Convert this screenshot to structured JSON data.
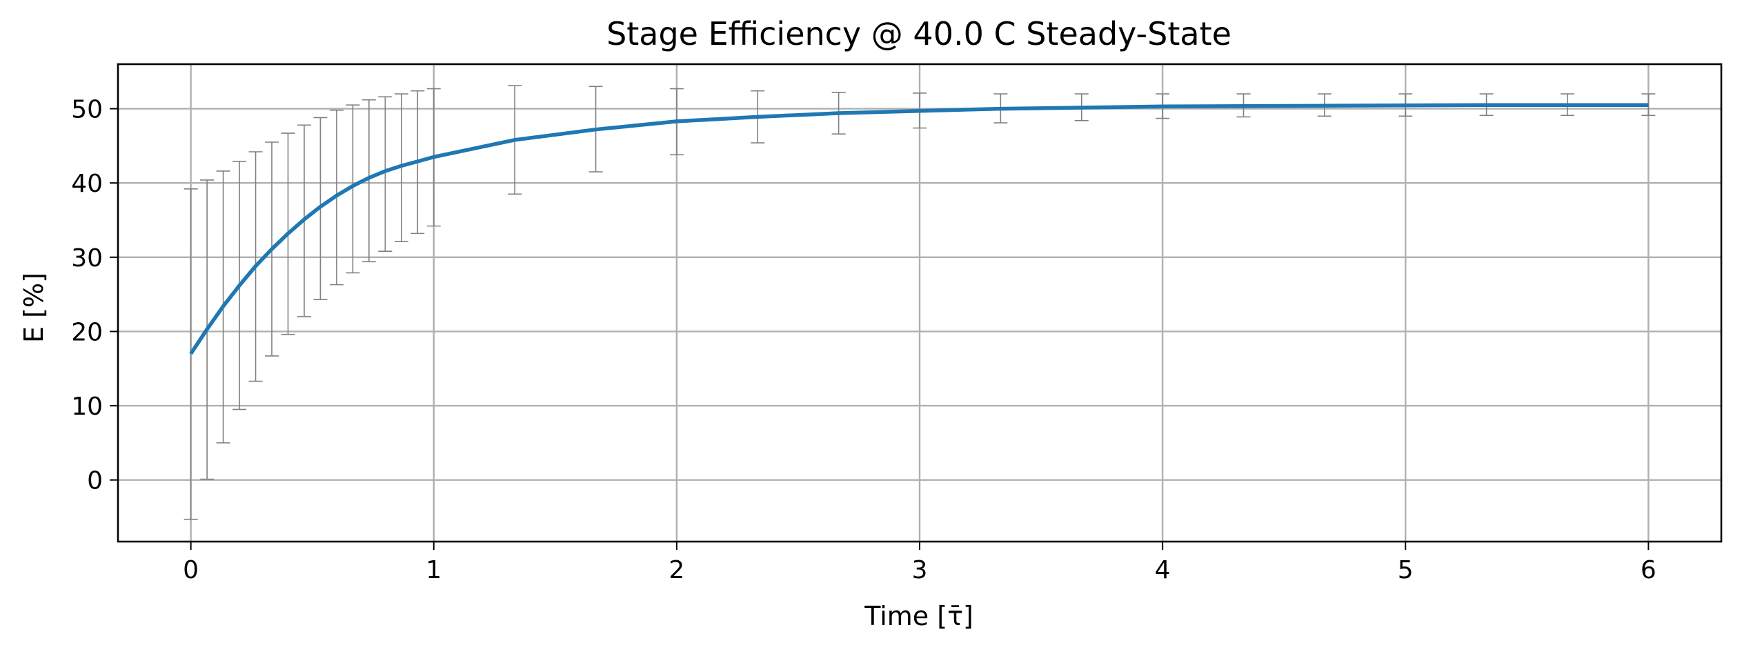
{
  "chart_data": {
    "type": "line",
    "title": "Stage Efficiency @ 40.0 C Steady-State",
    "xlabel": "Time [τ̄]",
    "ylabel": "E [%]",
    "xlim": [
      -0.3,
      6.3
    ],
    "ylim": [
      -8.3,
      56.0
    ],
    "xticks": [
      "0",
      "1",
      "2",
      "3",
      "4",
      "5",
      "6"
    ],
    "yticks": [
      "0",
      "10",
      "20",
      "30",
      "40",
      "50"
    ],
    "grid": true,
    "legend": "none",
    "colors": {
      "line": "#1f77b4",
      "errorbar": "#808080",
      "grid": "#b0b0b0"
    },
    "series": [
      {
        "x": [
          0,
          0.0667,
          0.1333,
          0.2,
          0.2667,
          0.3333,
          0.4,
          0.4667,
          0.5333,
          0.6,
          0.6667,
          0.7333,
          0.8,
          0.8667,
          0.9333,
          1.0,
          1.3333,
          1.6667,
          2.0,
          2.3333,
          2.6667,
          3.0,
          3.3333,
          3.6667,
          4.0,
          4.3333,
          4.6667,
          5.0,
          5.3333,
          5.6667,
          6.0
        ],
        "y": [
          17.0,
          20.3,
          23.4,
          26.2,
          28.8,
          31.1,
          33.2,
          35.1,
          36.8,
          38.3,
          39.6,
          40.7,
          41.6,
          42.3,
          42.9,
          43.5,
          45.8,
          47.2,
          48.3,
          48.9,
          49.4,
          49.7,
          50.0,
          50.15,
          50.3,
          50.35,
          50.4,
          50.45,
          50.5,
          50.5,
          50.5
        ],
        "err_low": [
          -5.3,
          0.1,
          5.0,
          9.5,
          13.3,
          16.7,
          19.6,
          22.0,
          24.3,
          26.3,
          27.9,
          29.4,
          30.8,
          32.1,
          33.2,
          34.2,
          38.5,
          41.5,
          43.8,
          45.4,
          46.6,
          47.4,
          48.1,
          48.4,
          48.7,
          48.9,
          49.0,
          49.0,
          49.1,
          49.1,
          49.1
        ],
        "err_high": [
          39.2,
          40.4,
          41.6,
          42.9,
          44.2,
          45.5,
          46.7,
          47.8,
          48.8,
          49.8,
          50.5,
          51.2,
          51.6,
          52.0,
          52.4,
          52.7,
          53.1,
          53.0,
          52.7,
          52.4,
          52.2,
          52.1,
          52.0,
          52.0,
          52.0,
          52.0,
          52.0,
          52.0,
          52.0,
          52.0,
          52.0
        ]
      }
    ]
  }
}
